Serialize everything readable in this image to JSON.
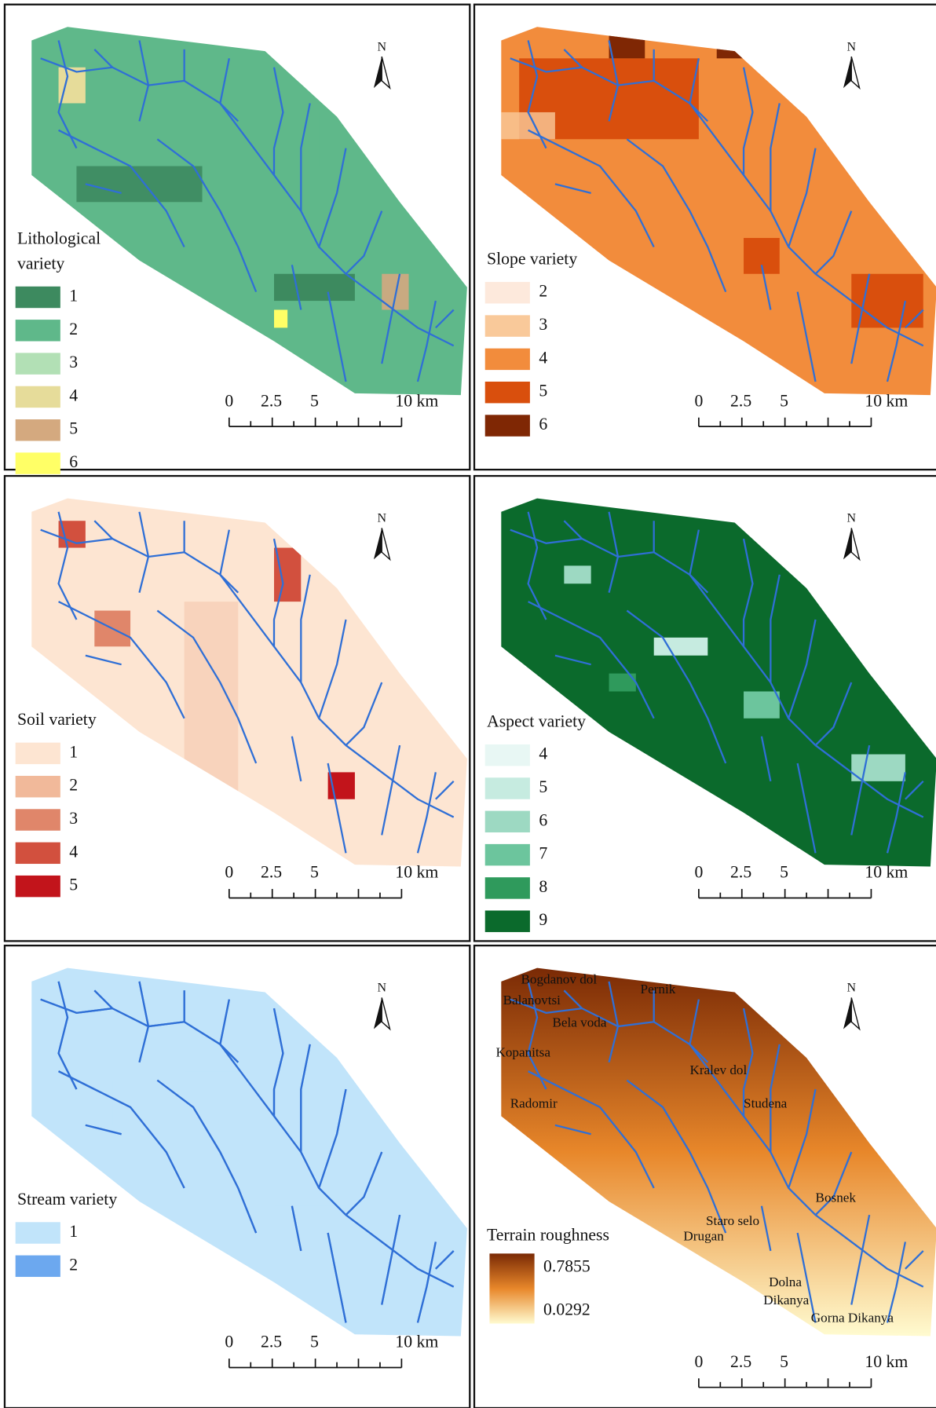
{
  "panels": [
    {
      "legend_title": [
        "Lithological",
        "variety"
      ],
      "legend": [
        {
          "label": "1",
          "color": "#3d8a5f"
        },
        {
          "label": "2",
          "color": "#5fb88a"
        },
        {
          "label": "3",
          "color": "#b2e0b5"
        },
        {
          "label": "4",
          "color": "#e6dc9a"
        },
        {
          "label": "5",
          "color": "#d4a97f"
        },
        {
          "label": "6",
          "color": "#ffff66"
        }
      ],
      "scale_labels": [
        "0",
        "2.5",
        "5",
        "10 km"
      ],
      "north": "N"
    },
    {
      "legend_title": [
        "Slope variety"
      ],
      "legend": [
        {
          "label": "2",
          "color": "#fde9dc"
        },
        {
          "label": "3",
          "color": "#f9c99a"
        },
        {
          "label": "4",
          "color": "#f28c3c"
        },
        {
          "label": "5",
          "color": "#d94f0d"
        },
        {
          "label": "6",
          "color": "#7f2704"
        }
      ],
      "scale_labels": [
        "0",
        "2.5",
        "5",
        "10 km"
      ],
      "north": "N"
    },
    {
      "legend_title": [
        "Soil variety"
      ],
      "legend": [
        {
          "label": "1",
          "color": "#fde5d2"
        },
        {
          "label": "2",
          "color": "#f1b99a"
        },
        {
          "label": "3",
          "color": "#e0866a"
        },
        {
          "label": "4",
          "color": "#d2503e"
        },
        {
          "label": "5",
          "color": "#c2141b"
        }
      ],
      "scale_labels": [
        "0",
        "2.5",
        "5",
        "10 km"
      ],
      "north": "N"
    },
    {
      "legend_title": [
        "Aspect variety"
      ],
      "legend": [
        {
          "label": "4",
          "color": "#e8f7f4"
        },
        {
          "label": "5",
          "color": "#c6ebe0"
        },
        {
          "label": "6",
          "color": "#9dd9c2"
        },
        {
          "label": "7",
          "color": "#6cc59d"
        },
        {
          "label": "8",
          "color": "#2f9a5c"
        },
        {
          "label": "9",
          "color": "#0b6a2c"
        }
      ],
      "scale_labels": [
        "0",
        "2.5",
        "5",
        "10 km"
      ],
      "north": "N"
    },
    {
      "legend_title": [
        "Stream variety"
      ],
      "legend": [
        {
          "label": "1",
          "color": "#c1e4fa"
        },
        {
          "label": "2",
          "color": "#6ca8ef"
        }
      ],
      "scale_labels": [
        "0",
        "2.5",
        "5",
        "10 km"
      ],
      "north": "N"
    },
    {
      "legend_title": [
        "Terrain roughness"
      ],
      "gradient": {
        "max": 0.7855,
        "min": 0.0292
      },
      "scale_labels": [
        "0",
        "2.5",
        "5",
        "10 km"
      ],
      "north": "N",
      "places": [
        "Bogdanov dol",
        "Balanovtsi",
        "Pernik",
        "Bela voda",
        "Kopanitsa",
        "Kralev dol",
        "Radomir",
        "Studena",
        "Bosnek",
        "Staro selo",
        "Drugan",
        "Dolna",
        "Dikanya",
        "Gorna Dikanya"
      ]
    }
  ]
}
